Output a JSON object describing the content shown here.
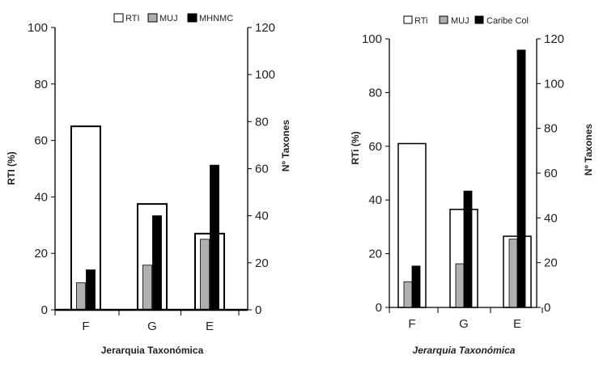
{
  "chart_data": [
    {
      "type": "bar",
      "categories": [
        "F",
        "G",
        "E"
      ],
      "series": [
        {
          "name": "RTI",
          "axis": "left",
          "values": [
            65,
            37.5,
            27
          ],
          "color": "#ffffff"
        },
        {
          "name": "MUJ",
          "axis": "right",
          "values": [
            11.5,
            19,
            30
          ],
          "color": "#b0b0b0"
        },
        {
          "name": "MHNMC",
          "axis": "right",
          "values": [
            17,
            40,
            61.5
          ],
          "color": "#000000"
        }
      ],
      "xlabel": "Jerarquia Taxonómica",
      "ylabel": "RTI (%)",
      "y2label": "Nº Taxones",
      "ylim": [
        0,
        100
      ],
      "y2lim": [
        0,
        120
      ],
      "yticks": [
        "0",
        "20",
        "40",
        "60",
        "80",
        "100"
      ],
      "y2ticks": [
        "0",
        "20",
        "40",
        "60",
        "80",
        "100",
        "120"
      ],
      "legend_position": "top",
      "grid": false
    },
    {
      "type": "bar",
      "categories": [
        "F",
        "G",
        "E"
      ],
      "series": [
        {
          "name": "RTi",
          "axis": "left",
          "values": [
            61,
            36.5,
            26.5
          ],
          "color": "#ffffff"
        },
        {
          "name": "MUJ",
          "axis": "right",
          "values": [
            11.5,
            19.5,
            30.5
          ],
          "color": "#b0b0b0"
        },
        {
          "name": "Caribe Col",
          "axis": "right",
          "values": [
            18.5,
            52,
            115
          ],
          "color": "#000000"
        }
      ],
      "xlabel": "Jerarquia Taxonómica",
      "ylabel": "RTi (%)",
      "y2label": "Nº Taxones",
      "ylim": [
        0,
        100
      ],
      "y2lim": [
        0,
        120
      ],
      "yticks": [
        "0",
        "20",
        "40",
        "60",
        "80",
        "100"
      ],
      "y2ticks": [
        "0",
        "20",
        "40",
        "60",
        "80",
        "100",
        "120"
      ],
      "legend_position": "top",
      "grid": false
    }
  ]
}
